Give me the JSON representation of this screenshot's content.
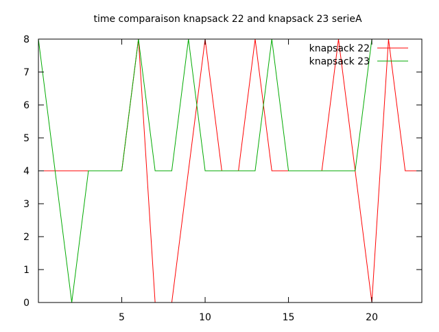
{
  "chart_data": {
    "type": "line",
    "title": "time comparaison knapsack 22 and knapsack 23 serieA",
    "xlabel": "",
    "ylabel": "",
    "xlim": [
      0,
      23
    ],
    "ylim": [
      0,
      8
    ],
    "xticks": [
      5,
      10,
      15,
      20
    ],
    "yticks": [
      0,
      1,
      2,
      3,
      4,
      5,
      6,
      7,
      8
    ],
    "grid": false,
    "legend_position": "top-right",
    "x": [
      0,
      1,
      2,
      3,
      4,
      5,
      6,
      7,
      8,
      9,
      10,
      11,
      12,
      13,
      14,
      15,
      16,
      17,
      18,
      19,
      20,
      21,
      22,
      23
    ],
    "series": [
      {
        "name": "knapsack 22",
        "color": "#ff0000",
        "values": [
          4,
          4,
          4,
          4,
          4,
          4,
          8,
          0,
          0,
          4,
          8,
          4,
          4,
          8,
          4,
          4,
          4,
          4,
          8,
          4,
          0,
          8,
          4,
          4
        ]
      },
      {
        "name": "knapsack 23",
        "color": "#00aa00",
        "values": [
          8,
          4,
          0,
          4,
          4,
          4,
          8,
          4,
          4,
          8,
          4,
          4,
          4,
          4,
          8,
          4,
          4,
          4,
          4,
          4,
          8,
          8,
          8,
          8
        ]
      }
    ]
  }
}
